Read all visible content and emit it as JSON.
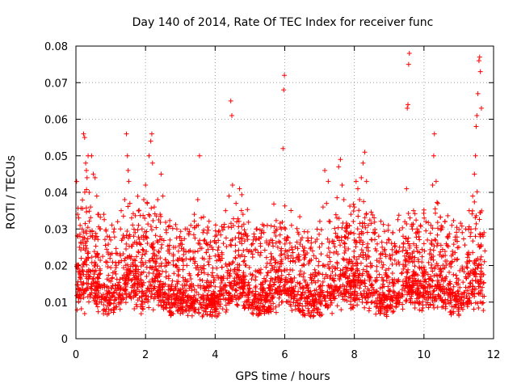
{
  "chart_data": {
    "type": "scatter",
    "title": "Day 140 of 2014, Rate Of TEC Index for receiver func",
    "xlabel": "GPS time / hours",
    "ylabel": "ROTI / TECUs",
    "xlim": [
      0,
      12
    ],
    "ylim": [
      0,
      0.08
    ],
    "x_ticks": [
      0,
      2,
      4,
      6,
      8,
      10,
      12
    ],
    "x_tick_labels": [
      "0",
      "2",
      "4",
      "6",
      "8",
      "10",
      "12"
    ],
    "y_ticks": [
      0,
      0.01,
      0.02,
      0.03,
      0.04,
      0.05,
      0.06,
      0.07,
      0.08
    ],
    "y_tick_labels": [
      "0",
      "0.01",
      "0.02",
      "0.03",
      "0.04",
      "0.05",
      "0.06",
      "0.07",
      "0.08"
    ],
    "grid": true,
    "marker": "plus",
    "color": "#ff0000",
    "series": [
      {
        "name": "ROTI",
        "points": [
          [
            0.02,
            0.043
          ],
          [
            0.05,
            0.034
          ],
          [
            0.08,
            0.033
          ],
          [
            0.1,
            0.025
          ],
          [
            0.12,
            0.031
          ],
          [
            0.15,
            0.022
          ],
          [
            0.18,
            0.03
          ],
          [
            0.2,
            0.027
          ],
          [
            0.22,
            0.056
          ],
          [
            0.25,
            0.055
          ],
          [
            0.28,
            0.048
          ],
          [
            0.3,
            0.046
          ],
          [
            0.32,
            0.044
          ],
          [
            0.35,
            0.05
          ],
          [
            0.38,
            0.04
          ],
          [
            0.42,
            0.036
          ],
          [
            0.45,
            0.05
          ],
          [
            0.5,
            0.045
          ],
          [
            0.55,
            0.044
          ],
          [
            0.6,
            0.039
          ],
          [
            0.65,
            0.034
          ],
          [
            0.7,
            0.03
          ],
          [
            0.8,
            0.034
          ],
          [
            0.9,
            0.028
          ],
          [
            1.0,
            0.027
          ],
          [
            1.1,
            0.03
          ],
          [
            1.2,
            0.032
          ],
          [
            1.3,
            0.035
          ],
          [
            1.4,
            0.038
          ],
          [
            1.45,
            0.056
          ],
          [
            1.48,
            0.05
          ],
          [
            1.5,
            0.046
          ],
          [
            1.52,
            0.043
          ],
          [
            1.55,
            0.037
          ],
          [
            1.6,
            0.033
          ],
          [
            1.7,
            0.029
          ],
          [
            1.8,
            0.031
          ],
          [
            1.9,
            0.03
          ],
          [
            1.95,
            0.038
          ],
          [
            2.0,
            0.042
          ],
          [
            2.05,
            0.037
          ],
          [
            2.1,
            0.05
          ],
          [
            2.15,
            0.054
          ],
          [
            2.18,
            0.056
          ],
          [
            2.2,
            0.048
          ],
          [
            2.25,
            0.036
          ],
          [
            2.35,
            0.038
          ],
          [
            2.45,
            0.045
          ],
          [
            2.5,
            0.039
          ],
          [
            2.6,
            0.029
          ],
          [
            2.7,
            0.027
          ],
          [
            2.8,
            0.025
          ],
          [
            2.9,
            0.03
          ],
          [
            3.0,
            0.026
          ],
          [
            3.1,
            0.024
          ],
          [
            3.2,
            0.03
          ],
          [
            3.3,
            0.031
          ],
          [
            3.4,
            0.034
          ],
          [
            3.5,
            0.038
          ],
          [
            3.55,
            0.05
          ],
          [
            3.6,
            0.033
          ],
          [
            3.65,
            0.029
          ],
          [
            3.7,
            0.027
          ],
          [
            3.8,
            0.021
          ],
          [
            3.9,
            0.025
          ],
          [
            4.0,
            0.028
          ],
          [
            4.1,
            0.025
          ],
          [
            4.2,
            0.023
          ],
          [
            4.3,
            0.035
          ],
          [
            4.4,
            0.039
          ],
          [
            4.45,
            0.065
          ],
          [
            4.48,
            0.061
          ],
          [
            4.5,
            0.042
          ],
          [
            4.6,
            0.037
          ],
          [
            4.7,
            0.041
          ],
          [
            4.8,
            0.034
          ],
          [
            4.9,
            0.028
          ],
          [
            5.0,
            0.024
          ],
          [
            5.1,
            0.027
          ],
          [
            5.2,
            0.03
          ],
          [
            5.3,
            0.026
          ],
          [
            5.4,
            0.029
          ],
          [
            5.5,
            0.031
          ],
          [
            5.6,
            0.027
          ],
          [
            5.7,
            0.029
          ],
          [
            5.8,
            0.025
          ],
          [
            5.9,
            0.03
          ],
          [
            5.95,
            0.052
          ],
          [
            5.97,
            0.068
          ],
          [
            5.99,
            0.072
          ],
          [
            6.05,
            0.027
          ],
          [
            6.1,
            0.022
          ],
          [
            6.2,
            0.025
          ],
          [
            6.3,
            0.021
          ],
          [
            6.4,
            0.023
          ],
          [
            6.5,
            0.02
          ],
          [
            6.6,
            0.023
          ],
          [
            6.7,
            0.021
          ],
          [
            6.8,
            0.024
          ],
          [
            6.9,
            0.022
          ],
          [
            7.0,
            0.025
          ],
          [
            7.1,
            0.036
          ],
          [
            7.15,
            0.046
          ],
          [
            7.2,
            0.037
          ],
          [
            7.25,
            0.043
          ],
          [
            7.3,
            0.032
          ],
          [
            7.4,
            0.026
          ],
          [
            7.5,
            0.033
          ],
          [
            7.55,
            0.047
          ],
          [
            7.6,
            0.049
          ],
          [
            7.65,
            0.042
          ],
          [
            7.7,
            0.038
          ],
          [
            7.8,
            0.031
          ],
          [
            7.9,
            0.034
          ],
          [
            8.0,
            0.036
          ],
          [
            8.05,
            0.043
          ],
          [
            8.1,
            0.041
          ],
          [
            8.15,
            0.038
          ],
          [
            8.2,
            0.044
          ],
          [
            8.25,
            0.048
          ],
          [
            8.3,
            0.051
          ],
          [
            8.35,
            0.043
          ],
          [
            8.4,
            0.031
          ],
          [
            8.5,
            0.027
          ],
          [
            8.6,
            0.029
          ],
          [
            8.7,
            0.028
          ],
          [
            8.8,
            0.025
          ],
          [
            8.9,
            0.023
          ],
          [
            9.0,
            0.027
          ],
          [
            9.1,
            0.029
          ],
          [
            9.2,
            0.024
          ],
          [
            9.3,
            0.025
          ],
          [
            9.4,
            0.028
          ],
          [
            9.45,
            0.032
          ],
          [
            9.5,
            0.041
          ],
          [
            9.52,
            0.063
          ],
          [
            9.54,
            0.064
          ],
          [
            9.56,
            0.075
          ],
          [
            9.58,
            0.078
          ],
          [
            9.6,
            0.033
          ],
          [
            9.7,
            0.035
          ],
          [
            9.8,
            0.029
          ],
          [
            9.9,
            0.031
          ],
          [
            10.0,
            0.026
          ],
          [
            10.1,
            0.027
          ],
          [
            10.2,
            0.031
          ],
          [
            10.25,
            0.042
          ],
          [
            10.28,
            0.05
          ],
          [
            10.3,
            0.056
          ],
          [
            10.35,
            0.043
          ],
          [
            10.4,
            0.037
          ],
          [
            10.5,
            0.03
          ],
          [
            10.6,
            0.032
          ],
          [
            10.7,
            0.028
          ],
          [
            10.8,
            0.031
          ],
          [
            10.9,
            0.027
          ],
          [
            11.0,
            0.025
          ],
          [
            11.1,
            0.029
          ],
          [
            11.2,
            0.03
          ],
          [
            11.3,
            0.035
          ],
          [
            11.4,
            0.039
          ],
          [
            11.45,
            0.045
          ],
          [
            11.48,
            0.05
          ],
          [
            11.5,
            0.058
          ],
          [
            11.52,
            0.061
          ],
          [
            11.55,
            0.067
          ],
          [
            11.58,
            0.076
          ],
          [
            11.6,
            0.077
          ],
          [
            11.62,
            0.073
          ],
          [
            11.65,
            0.063
          ],
          [
            11.7,
            0.028
          ],
          [
            11.75,
            0.024
          ]
        ]
      }
    ]
  }
}
